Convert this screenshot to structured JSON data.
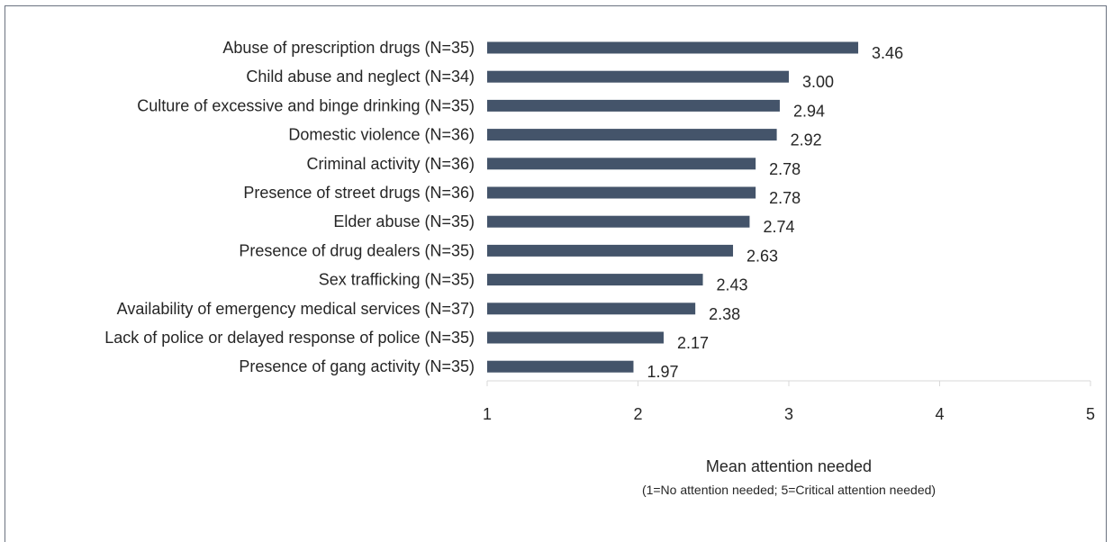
{
  "chart_data": {
    "type": "bar",
    "orientation": "horizontal",
    "categories": [
      "Abuse of prescription drugs (N=35)",
      "Child abuse and neglect (N=34)",
      "Culture of excessive and binge drinking (N=35)",
      "Domestic violence (N=36)",
      "Criminal activity (N=36)",
      "Presence of street drugs (N=36)",
      "Elder abuse (N=35)",
      "Presence of drug dealers (N=35)",
      "Sex trafficking (N=35)",
      "Availability of emergency medical services (N=37)",
      "Lack of police or delayed response of police (N=35)",
      "Presence of gang activity (N=35)"
    ],
    "values": [
      3.46,
      3.0,
      2.94,
      2.92,
      2.78,
      2.78,
      2.74,
      2.63,
      2.43,
      2.38,
      2.17,
      1.97
    ],
    "data_labels": [
      "3.46",
      "3.00",
      "2.94",
      "2.92",
      "2.78",
      "2.78",
      "2.74",
      "2.63",
      "2.43",
      "2.38",
      "2.17",
      "1.97"
    ],
    "xlabel": "Mean attention needed",
    "xlabel_note": "(1=No attention needed; 5=Critical attention needed)",
    "xlim": [
      1,
      5
    ],
    "xticks": [
      "1",
      "2",
      "3",
      "4",
      "5"
    ],
    "bar_color": "#44546a",
    "grid": false,
    "legend": "none"
  }
}
